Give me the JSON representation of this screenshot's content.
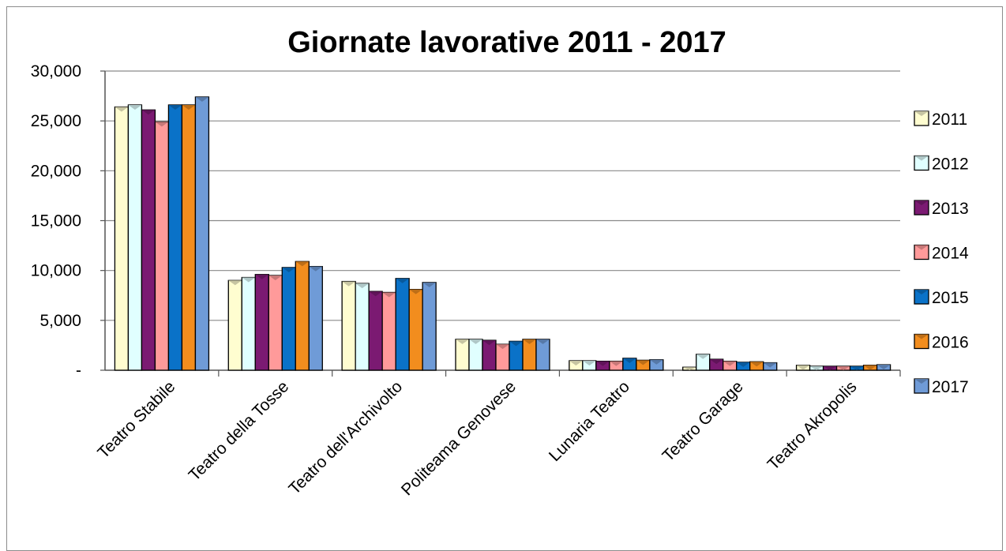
{
  "chart_data": {
    "type": "bar",
    "title": "Giornate lavorative 2011 - 2017",
    "xlabel": "",
    "ylabel": "",
    "ylim": [
      0,
      30000
    ],
    "yticks": [
      0,
      5000,
      10000,
      15000,
      20000,
      25000,
      30000
    ],
    "ytick_labels": [
      "-",
      "5,000",
      "10,000",
      "15,000",
      "20,000",
      "25,000",
      "30,000"
    ],
    "grid": true,
    "legend_position": "right",
    "categories": [
      "Teatro Stabile",
      "Teatro della Tosse",
      "Teatro dell'Archivolto",
      "Politeama Genovese",
      "Lunaria Teatro",
      "Teatro Garage",
      "Teatro Akropolis"
    ],
    "series": [
      {
        "name": "2011",
        "color": "#fffdd0",
        "values": [
          26400,
          9000,
          8900,
          3100,
          950,
          300,
          500
        ]
      },
      {
        "name": "2012",
        "color": "#e0ffff",
        "values": [
          26600,
          9300,
          8700,
          3100,
          950,
          1600,
          400
        ]
      },
      {
        "name": "2013",
        "color": "#7b1a72",
        "values": [
          26100,
          9600,
          7900,
          3000,
          900,
          1100,
          400
        ]
      },
      {
        "name": "2014",
        "color": "#ff9a9a",
        "values": [
          24900,
          9500,
          7800,
          2600,
          900,
          900,
          400
        ]
      },
      {
        "name": "2015",
        "color": "#0a72c8",
        "values": [
          26600,
          10300,
          9200,
          2900,
          1200,
          800,
          400
        ]
      },
      {
        "name": "2016",
        "color": "#f28d1e",
        "values": [
          26600,
          10900,
          8100,
          3100,
          1000,
          850,
          500
        ]
      },
      {
        "name": "2017",
        "color": "#6f9bd7",
        "values": [
          27400,
          10400,
          8800,
          3100,
          1050,
          750,
          550
        ]
      }
    ]
  }
}
